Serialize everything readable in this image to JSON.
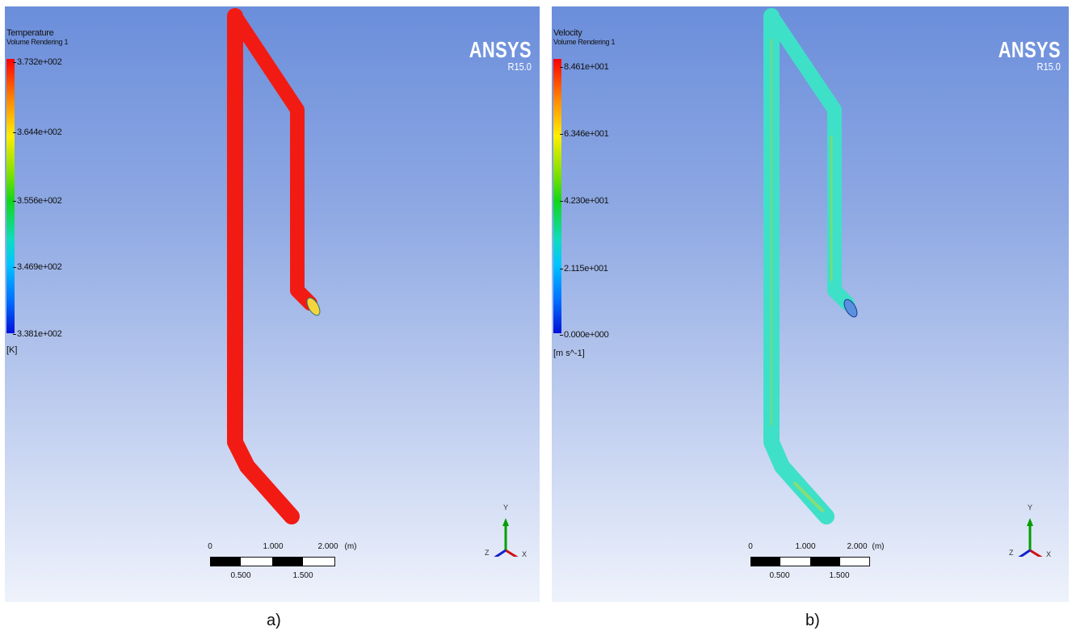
{
  "panels": [
    {
      "id": "a",
      "legend": {
        "title": "Temperature",
        "subtitle": "Volume Rendering 1",
        "ticks": [
          "3.732e+002",
          "3.644e+002",
          "3.556e+002",
          "3.469e+002",
          "3.381e+002"
        ],
        "unit": "[K]"
      },
      "brand": {
        "name": "ANSYS",
        "version": "R15.0"
      },
      "scale": {
        "top_labels": [
          "0",
          "1.000",
          "2.000",
          "(m)"
        ],
        "bottom_labels": [
          "0.500",
          "1.500"
        ]
      },
      "axes": {
        "y": "Y",
        "z": "Z",
        "x": "X"
      },
      "pipe_color": "#f21b14",
      "caption": "a)"
    },
    {
      "id": "b",
      "legend": {
        "title": "Velocity",
        "subtitle": "Volume Rendering 1",
        "ticks": [
          "8.461e+001",
          "6.346e+001",
          "4.230e+001",
          "2.115e+001",
          "0.000e+000"
        ],
        "unit": "[m s^-1]"
      },
      "brand": {
        "name": "ANSYS",
        "version": "R15.0"
      },
      "scale": {
        "top_labels": [
          "0",
          "1.000",
          "2.000",
          "(m)"
        ],
        "bottom_labels": [
          "0.500",
          "1.500"
        ]
      },
      "axes": {
        "y": "Y",
        "z": "Z",
        "x": "X"
      },
      "pipe_color": "#3fe0c8",
      "caption": "b)"
    }
  ],
  "colors": {
    "axis_y": "#00a000",
    "axis_x": "#d01010",
    "axis_z": "#1020d0"
  }
}
